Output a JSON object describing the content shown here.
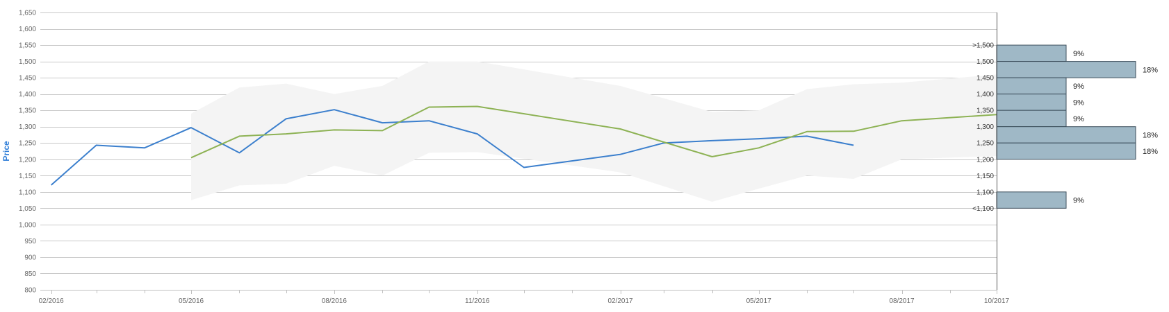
{
  "chart_data": {
    "type": "line",
    "ylabel": "Price",
    "ylim": [
      800,
      1650
    ],
    "y_ticks": [
      "1,650",
      "1,600",
      "1,550",
      "1,500",
      "1,450",
      "1,400",
      "1,350",
      "1,300",
      "1,250",
      "1,200",
      "1,150",
      "1,100",
      "1,050",
      "1,000",
      "950",
      "900",
      "850",
      "800"
    ],
    "y_tick_values": [
      1650,
      1600,
      1550,
      1500,
      1450,
      1400,
      1350,
      1300,
      1250,
      1200,
      1150,
      1100,
      1050,
      1000,
      950,
      900,
      850,
      800
    ],
    "x_range": [
      "2016-01-25",
      "2017-10-01"
    ],
    "x_ticks": [
      "02/2016",
      "05/2016",
      "08/2016",
      "11/2016",
      "02/2017",
      "05/2017",
      "08/2017",
      "10/2017"
    ],
    "x_tick_dates": [
      "2016-02-01",
      "2016-05-01",
      "2016-08-01",
      "2016-11-01",
      "2017-02-01",
      "2017-05-01",
      "2017-08-01",
      "2017-10-01"
    ],
    "minor_tick_dates": [
      "2016-03-01",
      "2016-04-01",
      "2016-06-01",
      "2016-07-01",
      "2016-09-01",
      "2016-10-01",
      "2016-12-01",
      "2017-01-01",
      "2017-03-01",
      "2017-04-01",
      "2017-06-01",
      "2017-07-01",
      "2017-09-01"
    ],
    "grid": true,
    "series": [
      {
        "color": "#3b7fcd",
        "points": [
          [
            "2016-02-01",
            1121
          ],
          [
            "2016-03-01",
            1243
          ],
          [
            "2016-04-01",
            1235
          ],
          [
            "2016-05-01",
            1297
          ],
          [
            "2016-06-01",
            1220
          ],
          [
            "2016-07-01",
            1324
          ],
          [
            "2016-08-01",
            1352
          ],
          [
            "2016-09-01",
            1312
          ],
          [
            "2016-10-01",
            1318
          ],
          [
            "2016-11-01",
            1278
          ],
          [
            "2016-12-01",
            1175
          ],
          [
            "2017-02-01",
            1215
          ],
          [
            "2017-03-01",
            1250
          ],
          [
            "2017-04-01",
            1257
          ],
          [
            "2017-05-01",
            1263
          ],
          [
            "2017-06-01",
            1271
          ],
          [
            "2017-07-01",
            1243
          ]
        ]
      },
      {
        "color": "#8db254",
        "points": [
          [
            "2016-05-01",
            1205
          ],
          [
            "2016-06-01",
            1271
          ],
          [
            "2016-07-01",
            1278
          ],
          [
            "2016-08-01",
            1290
          ],
          [
            "2016-09-01",
            1288
          ],
          [
            "2016-10-01",
            1360
          ],
          [
            "2016-11-01",
            1362
          ],
          [
            "2017-02-01",
            1293
          ],
          [
            "2017-04-01",
            1208
          ],
          [
            "2017-05-01",
            1235
          ],
          [
            "2017-06-01",
            1285
          ],
          [
            "2017-07-01",
            1286
          ],
          [
            "2017-08-01",
            1318
          ],
          [
            "2017-10-01",
            1337
          ]
        ]
      }
    ],
    "range_band": {
      "color": "#f4f4f4",
      "upper": [
        [
          "2016-05-01",
          1340
        ],
        [
          "2016-06-01",
          1420
        ],
        [
          "2016-07-01",
          1432
        ],
        [
          "2016-08-01",
          1400
        ],
        [
          "2016-09-01",
          1425
        ],
        [
          "2016-10-01",
          1500
        ],
        [
          "2016-11-01",
          1500
        ],
        [
          "2017-02-01",
          1425
        ],
        [
          "2017-04-01",
          1345
        ],
        [
          "2017-05-01",
          1350
        ],
        [
          "2017-06-01",
          1415
        ],
        [
          "2017-07-01",
          1430
        ],
        [
          "2017-08-01",
          1435
        ],
        [
          "2017-10-01",
          1460
        ]
      ],
      "lower": [
        [
          "2016-05-01",
          1075
        ],
        [
          "2016-06-01",
          1120
        ],
        [
          "2016-07-01",
          1125
        ],
        [
          "2016-08-01",
          1180
        ],
        [
          "2016-09-01",
          1150
        ],
        [
          "2016-10-01",
          1220
        ],
        [
          "2016-11-01",
          1222
        ],
        [
          "2017-02-01",
          1160
        ],
        [
          "2017-04-01",
          1070
        ],
        [
          "2017-05-01",
          1110
        ],
        [
          "2017-06-01",
          1150
        ],
        [
          "2017-07-01",
          1140
        ],
        [
          "2017-08-01",
          1200
        ],
        [
          "2017-10-01",
          1210
        ]
      ]
    },
    "distribution": {
      "type": "bar",
      "color": "#9fb8c6",
      "bins": [
        {
          "from": 1500,
          "to": 1550,
          "percent": 9,
          "label": "9%"
        },
        {
          "from": 1450,
          "to": 1500,
          "percent": 18,
          "label": "18%"
        },
        {
          "from": 1400,
          "to": 1450,
          "percent": 9,
          "label": "9%"
        },
        {
          "from": 1350,
          "to": 1400,
          "percent": 9,
          "label": "9%"
        },
        {
          "from": 1300,
          "to": 1350,
          "percent": 9,
          "label": "9%"
        },
        {
          "from": 1250,
          "to": 1300,
          "percent": 18,
          "label": "18%"
        },
        {
          "from": 1200,
          "to": 1250,
          "percent": 18,
          "label": "18%"
        },
        {
          "from": 1050,
          "to": 1100,
          "percent": 9,
          "label": "9%"
        }
      ],
      "axis_labels": [
        {
          "text": ">1,500",
          "value": 1550
        },
        {
          "text": "1,500",
          "value": 1500
        },
        {
          "text": "1,450",
          "value": 1450
        },
        {
          "text": "1,400",
          "value": 1400
        },
        {
          "text": "1,350",
          "value": 1350
        },
        {
          "text": "1,300",
          "value": 1300
        },
        {
          "text": "1,250",
          "value": 1250
        },
        {
          "text": "1,200",
          "value": 1200
        },
        {
          "text": "1,150",
          "value": 1150
        },
        {
          "text": "1,100",
          "value": 1100
        },
        {
          "text": "<1,100",
          "value": 1050
        }
      ]
    }
  }
}
